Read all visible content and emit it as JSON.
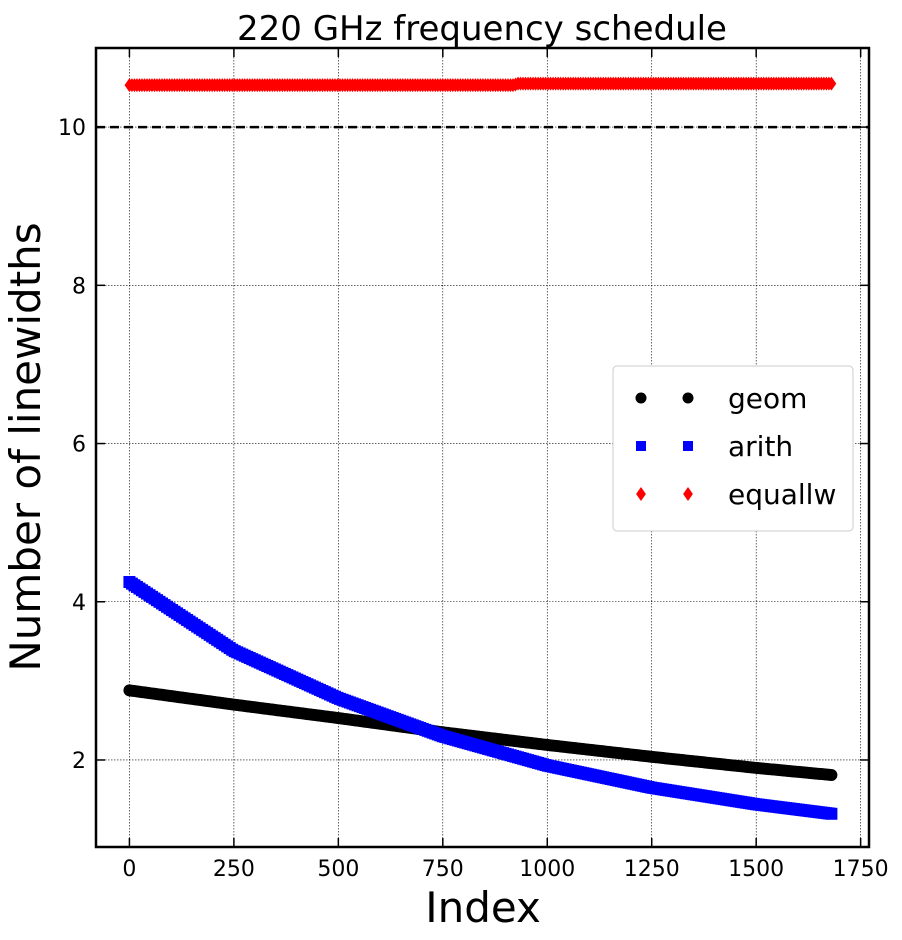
{
  "chart_data": {
    "type": "scatter",
    "title": "220 GHz frequency schedule",
    "xlabel": "Index",
    "ylabel": "Number of linewidths",
    "xlim": [
      -80,
      1770
    ],
    "ylim": [
      0.9,
      11.0
    ],
    "xticks": [
      0,
      250,
      500,
      750,
      1000,
      1250,
      1500,
      1750
    ],
    "yticks": [
      2,
      4,
      6,
      8,
      10
    ],
    "grid": true,
    "legend_position": "center-right",
    "reference_line": {
      "y": 10,
      "style": "dashed",
      "color": "#000000"
    },
    "x_range": [
      0,
      1680
    ],
    "series": [
      {
        "name": "geom",
        "color": "#000000",
        "marker": "circle",
        "x": [
          0,
          250,
          500,
          750,
          1000,
          1250,
          1500,
          1680
        ],
        "y": [
          2.88,
          2.7,
          2.53,
          2.35,
          2.19,
          2.04,
          1.9,
          1.81
        ]
      },
      {
        "name": "arith",
        "color": "#0000ff",
        "marker": "square",
        "x": [
          0,
          250,
          500,
          750,
          1000,
          1250,
          1500,
          1680
        ],
        "y": [
          4.25,
          3.38,
          2.78,
          2.3,
          1.93,
          1.65,
          1.44,
          1.32
        ]
      },
      {
        "name": "equallw",
        "color": "#ff0000",
        "marker": "diamond",
        "x": [
          0,
          920,
          930,
          1680
        ],
        "y": [
          10.53,
          10.53,
          10.55,
          10.55
        ]
      }
    ]
  }
}
